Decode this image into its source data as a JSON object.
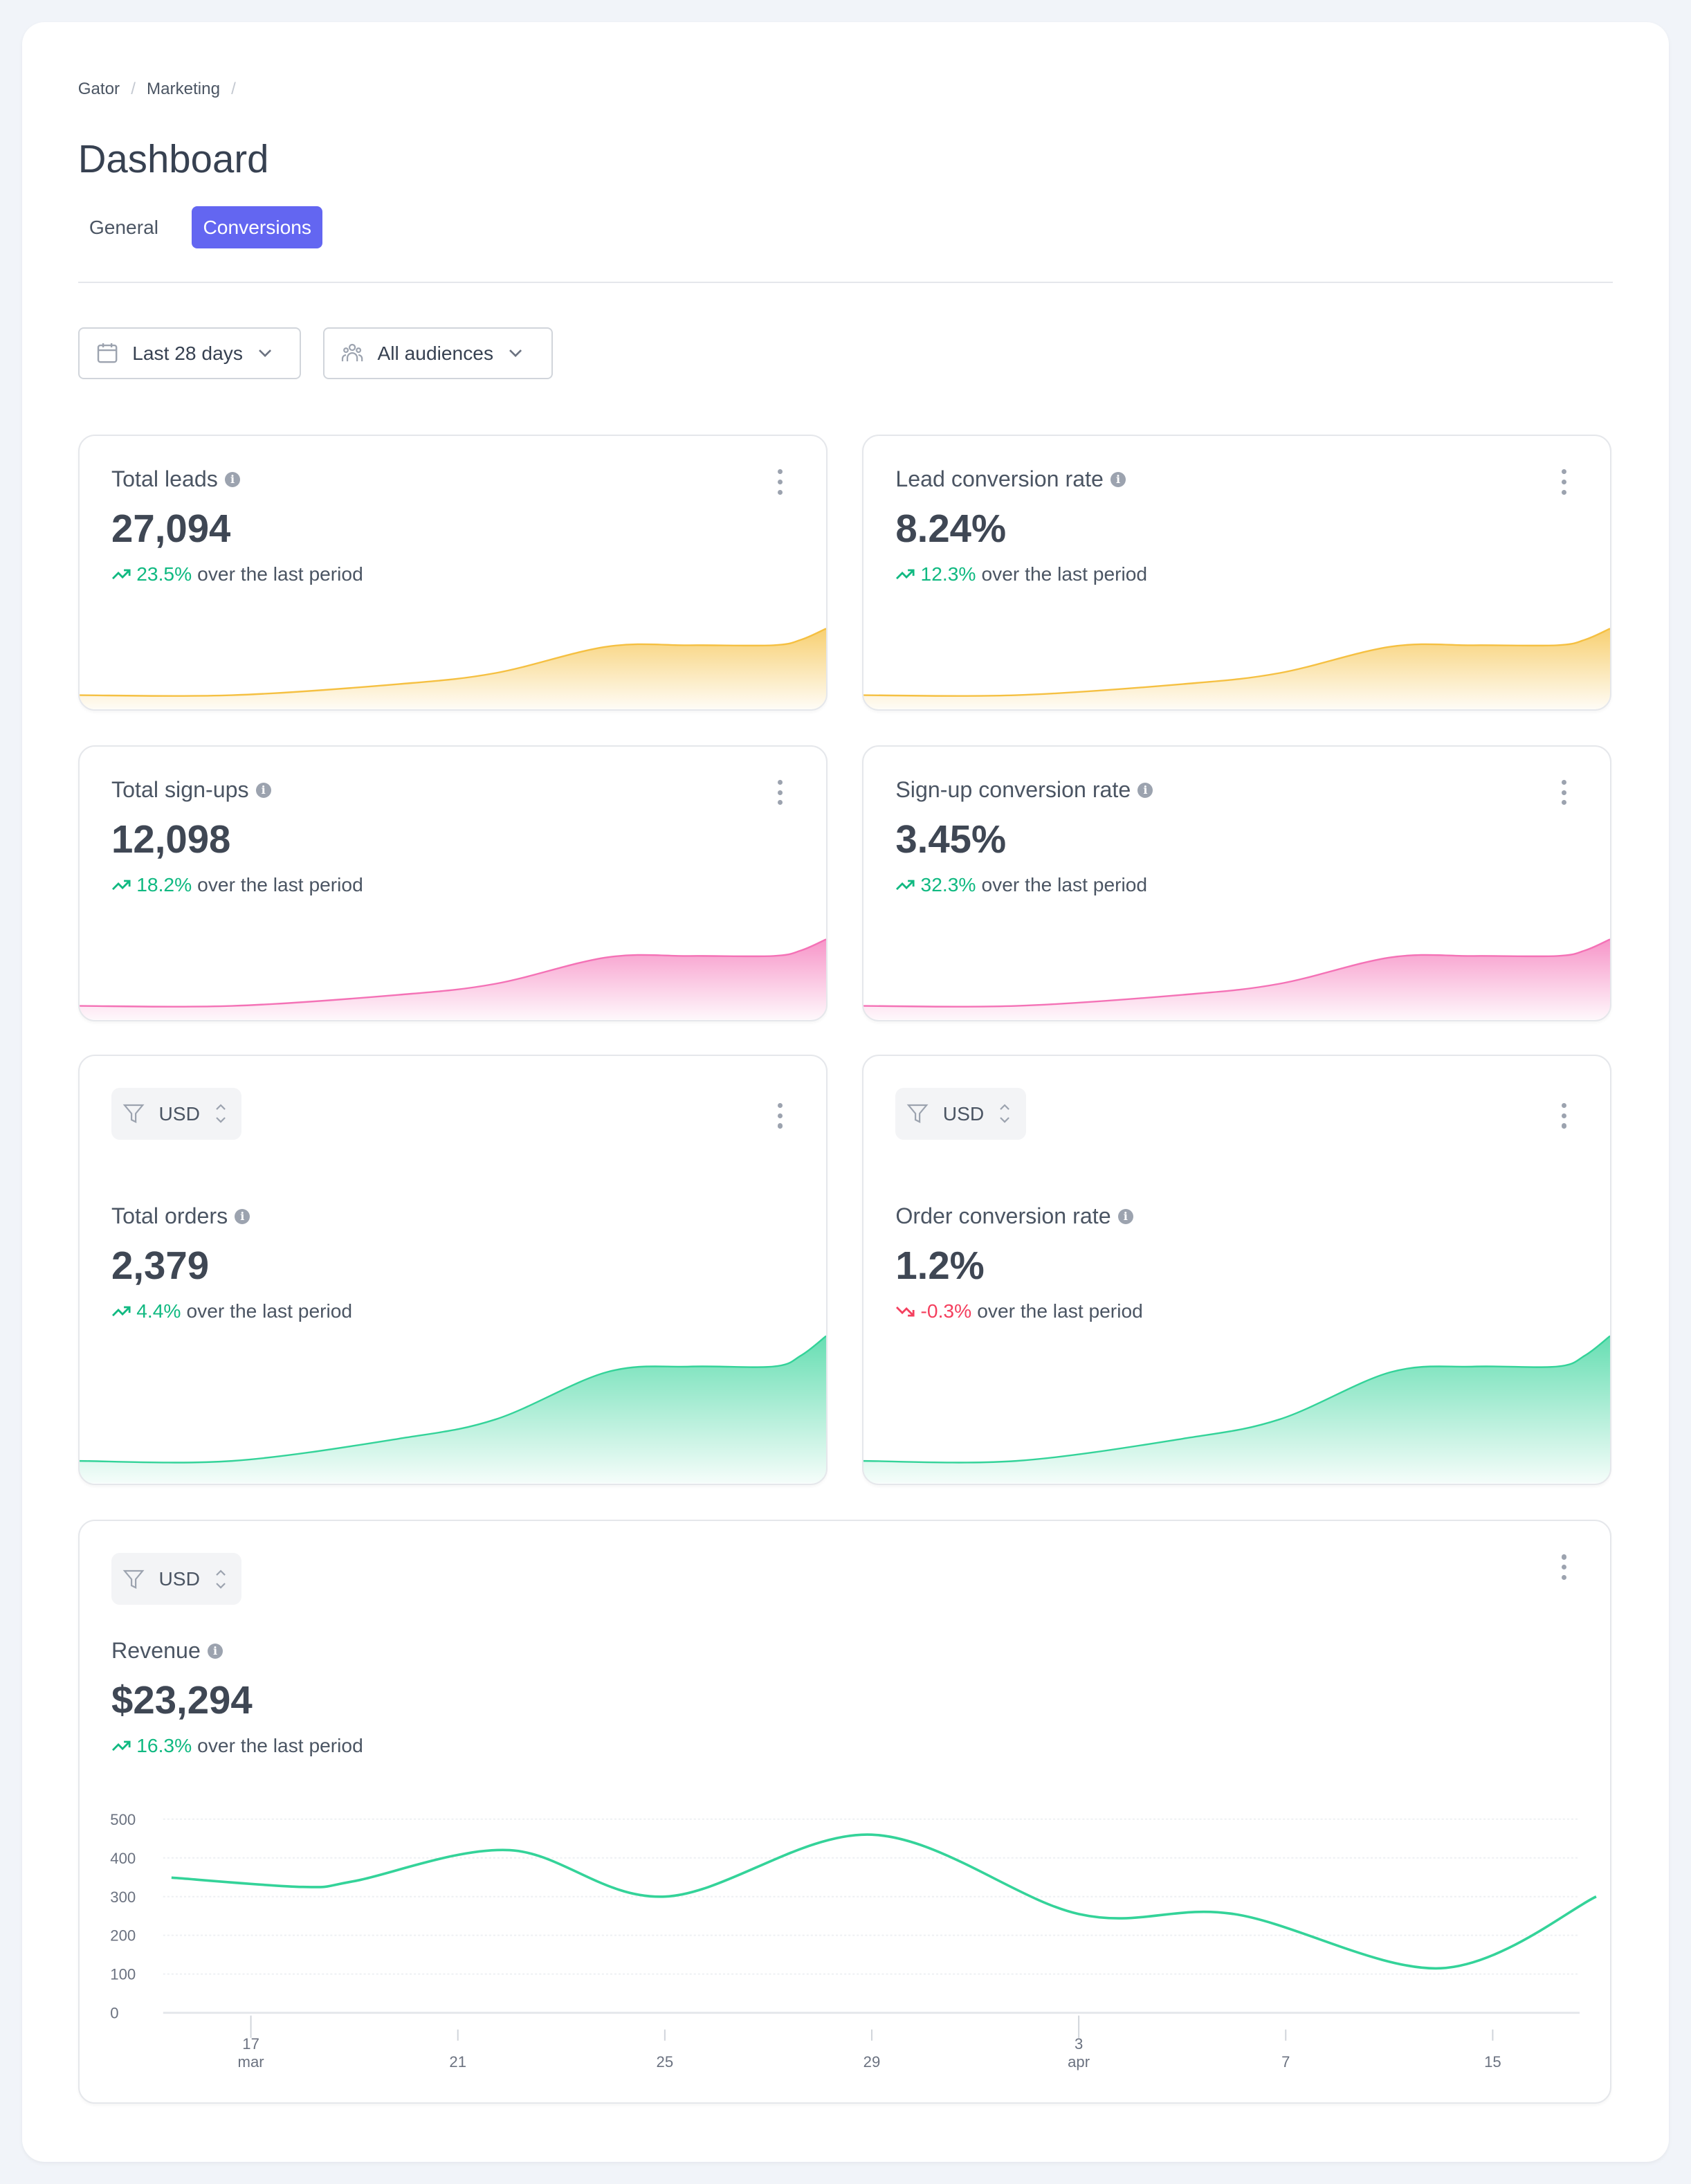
{
  "breadcrumb": [
    "Gator",
    "Marketing"
  ],
  "page_title": "Dashboard",
  "tabs": [
    {
      "label": "General",
      "active": false
    },
    {
      "label": "Conversions",
      "active": true
    }
  ],
  "filters": {
    "date_range": "Last 28 days",
    "audience": "All audiences"
  },
  "colors": {
    "accent": "#6366f1",
    "up": "#10b981",
    "down": "#f43f5e",
    "amber": "#f5c042",
    "pink": "#f472b6",
    "green": "#34d399"
  },
  "change_suffix": "over the last period",
  "cards": [
    {
      "title": "Total leads",
      "value": "27,094",
      "change": "23.5%",
      "trend": "up",
      "color": "#f5c042",
      "currency": null
    },
    {
      "title": "Lead conversion rate",
      "value": "8.24%",
      "change": "12.3%",
      "trend": "up",
      "color": "#f5c042",
      "currency": null
    },
    {
      "title": "Total sign-ups",
      "value": "12,098",
      "change": "18.2%",
      "trend": "up",
      "color": "#f472b6",
      "currency": null
    },
    {
      "title": "Sign-up conversion rate",
      "value": "3.45%",
      "change": "32.3%",
      "trend": "up",
      "color": "#f472b6",
      "currency": null
    },
    {
      "title": "Total orders",
      "value": "2,379",
      "change": "4.4%",
      "trend": "up",
      "color": "#34d399",
      "currency": "USD"
    },
    {
      "title": "Order conversion rate",
      "value": "1.2%",
      "change": "-0.3%",
      "trend": "down",
      "color": "#34d399",
      "currency": "USD"
    }
  ],
  "revenue": {
    "currency": "USD",
    "title": "Revenue",
    "value": "$23,294",
    "change": "16.3%",
    "trend": "up"
  },
  "chart_data": {
    "type": "line",
    "title": "",
    "color": "#34d399",
    "ylim": [
      0,
      500
    ],
    "yticks": [
      "0",
      "100",
      "200",
      "300",
      "400",
      "500"
    ],
    "xticks": [
      {
        "day": "17",
        "month": "mar"
      },
      {
        "day": "21",
        "month": ""
      },
      {
        "day": "25",
        "month": ""
      },
      {
        "day": "29",
        "month": ""
      },
      {
        "day": "3",
        "month": "apr"
      },
      {
        "day": "7",
        "month": ""
      },
      {
        "day": "15",
        "month": ""
      }
    ],
    "grid": true,
    "points": [
      {
        "x": "Mar 15",
        "y": 349
      },
      {
        "x": "Mar 18",
        "y": 325
      },
      {
        "x": "Mar 19",
        "y": 340
      },
      {
        "x": "Mar 22",
        "y": 420
      },
      {
        "x": "Mar 25",
        "y": 300
      },
      {
        "x": "Mar 29",
        "y": 460
      },
      {
        "x": "Apr 2",
        "y": 255
      },
      {
        "x": "Apr 5",
        "y": 255
      },
      {
        "x": "Apr 9",
        "y": 115
      },
      {
        "x": "Apr 12",
        "y": 300
      }
    ]
  }
}
